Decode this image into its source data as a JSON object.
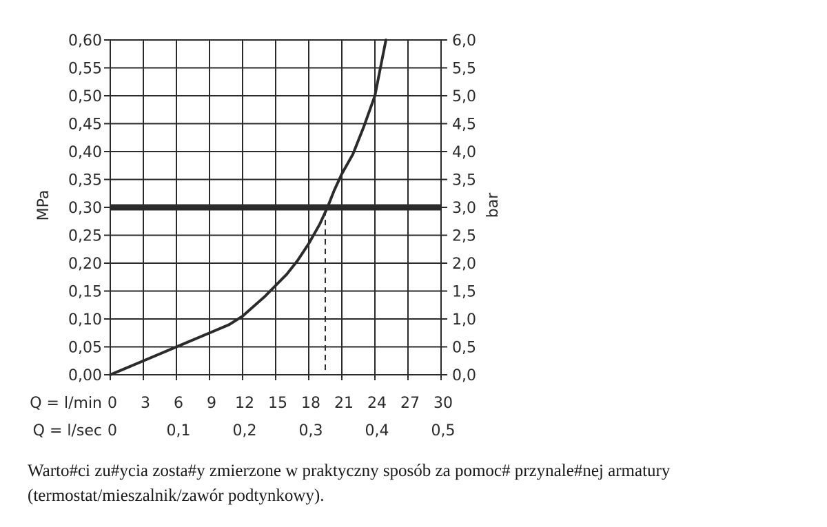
{
  "chart_data": {
    "type": "line",
    "y_left": {
      "label": "MPa",
      "range": [
        0,
        0.6
      ],
      "ticks": [
        "0,00",
        "0,05",
        "0,10",
        "0,15",
        "0,20",
        "0,25",
        "0,30",
        "0,35",
        "0,40",
        "0,45",
        "0,50",
        "0,55",
        "0,60"
      ]
    },
    "y_right": {
      "label": "bar",
      "range": [
        0,
        6
      ],
      "ticks": [
        "0,0",
        "0,5",
        "1,0",
        "1,5",
        "2,0",
        "2,5",
        "3,0",
        "3,5",
        "4,0",
        "4,5",
        "5,0",
        "5,5",
        "6,0"
      ]
    },
    "x_primary": {
      "label": "Q = l/min",
      "range": [
        0,
        30
      ],
      "ticks": [
        "0",
        "3",
        "6",
        "9",
        "12",
        "15",
        "18",
        "21",
        "24",
        "27",
        "30"
      ]
    },
    "x_secondary": {
      "label": "Q = l/sec",
      "ticks": [
        {
          "value": 0,
          "label": "0"
        },
        {
          "value": 6,
          "label": "0,1"
        },
        {
          "value": 12,
          "label": "0,2"
        },
        {
          "value": 18,
          "label": "0,3"
        },
        {
          "value": 24,
          "label": "0,4"
        },
        {
          "value": 30,
          "label": "0,5"
        }
      ]
    },
    "grid": true,
    "series": [
      {
        "x": [
          0,
          3,
          6,
          9,
          10.8,
          12,
          14,
          15,
          16,
          17,
          18,
          19,
          19.7,
          20.3,
          21,
          22,
          23,
          24,
          24.5,
          25
        ],
        "y": [
          0,
          0.025,
          0.05,
          0.075,
          0.09,
          0.105,
          0.14,
          0.16,
          0.18,
          0.205,
          0.235,
          0.27,
          0.3,
          0.33,
          0.36,
          0.395,
          0.445,
          0.5,
          0.55,
          0.6
        ]
      }
    ],
    "reference_line": {
      "y": 0.3
    },
    "reference_drop": {
      "x": 19.5,
      "y": 0.3
    }
  },
  "caption": {
    "line1": "Warto#ci zu#ycia zosta#y zmierzone w praktyczny sposób za pomoc# przynale#nej armatury",
    "line2": "(termostat/mieszalnik/zawór podtynkowy)."
  }
}
